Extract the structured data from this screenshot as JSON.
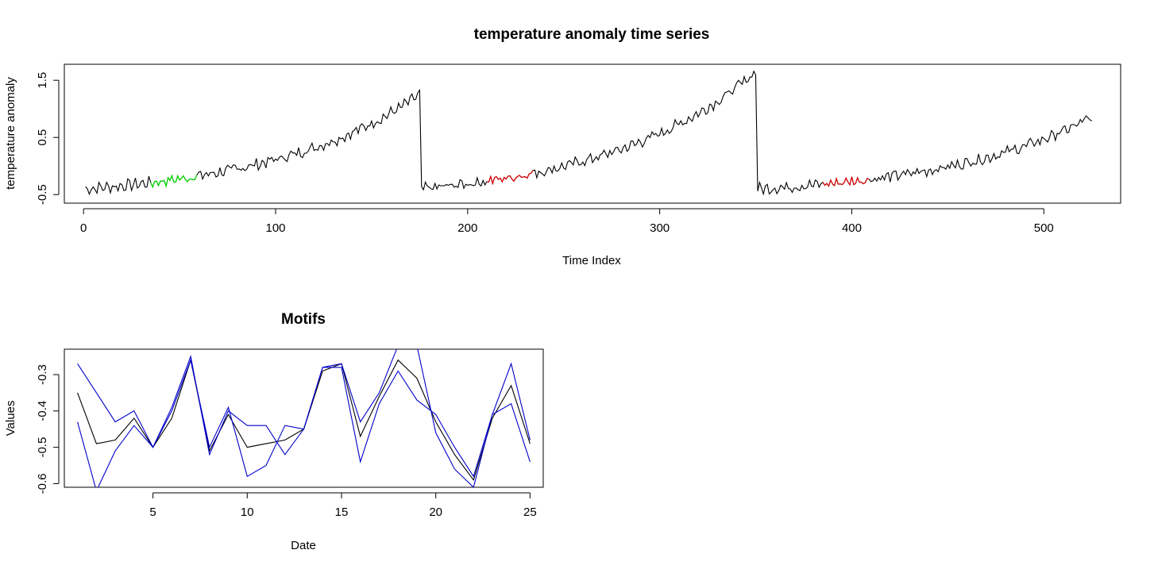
{
  "chart_data": [
    {
      "type": "line",
      "title": "temperature anomaly time series",
      "xlabel": "Time Index",
      "ylabel": "temperature anomaly",
      "xlim": [
        -10,
        540
      ],
      "ylim": [
        -0.65,
        1.78
      ],
      "xticks": [
        0,
        100,
        200,
        300,
        400,
        500
      ],
      "yticks": [
        -0.5,
        0.5,
        1.5
      ],
      "ytick_labels": [
        "-0.5",
        "0.5",
        "1.5"
      ],
      "grid": false,
      "series": [
        {
          "color": "#000000",
          "x_start": 1,
          "segments": [
            {
              "x_from": 1,
              "x_to": 175,
              "start": -0.4,
              "end": 1.25,
              "shape": "exponential"
            },
            {
              "x_from": 176,
              "x_to": 350,
              "start": -0.4,
              "end": 1.65,
              "shape": "exponential"
            },
            {
              "x_from": 351,
              "x_to": 525,
              "start": -0.4,
              "end": 0.85,
              "shape": "exponential"
            }
          ],
          "noise_amplitude": 0.08
        }
      ],
      "highlights": [
        {
          "color": "#00dd00",
          "x_from": 35,
          "x_to": 59
        },
        {
          "color": "#dd0000",
          "x_from": 210,
          "x_to": 234
        },
        {
          "color": "#dd0000",
          "x_from": 385,
          "x_to": 409
        }
      ]
    },
    {
      "type": "line",
      "title": "Motifs",
      "xlabel": "Date",
      "ylabel": "Values",
      "xlim": [
        0.3,
        25.7
      ],
      "ylim": [
        -0.61,
        -0.23
      ],
      "xticks": [
        5,
        10,
        15,
        20,
        25
      ],
      "yticks": [
        -0.6,
        -0.5,
        -0.4,
        -0.3
      ],
      "ytick_labels": [
        "-0.6",
        "-0.5",
        "-0.4",
        "-0.3"
      ],
      "grid": false,
      "x": [
        1,
        2,
        3,
        4,
        5,
        6,
        7,
        8,
        9,
        10,
        11,
        12,
        13,
        14,
        15,
        16,
        17,
        18,
        19,
        20,
        21,
        22,
        23,
        24,
        25
      ],
      "series": [
        {
          "color": "#000000",
          "values": [
            -0.35,
            -0.49,
            -0.48,
            -0.42,
            -0.5,
            -0.42,
            -0.26,
            -0.51,
            -0.41,
            -0.5,
            -0.49,
            -0.48,
            -0.45,
            -0.29,
            -0.27,
            -0.47,
            -0.36,
            -0.26,
            -0.31,
            -0.43,
            -0.52,
            -0.59,
            -0.42,
            -0.33,
            -0.49
          ]
        },
        {
          "color": "#0000cc",
          "values": [
            -0.27,
            -0.35,
            -0.43,
            -0.4,
            -0.5,
            -0.39,
            -0.25,
            -0.52,
            -0.4,
            -0.44,
            -0.44,
            -0.52,
            -0.45,
            -0.28,
            -0.27,
            -0.43,
            -0.35,
            -0.22,
            -0.22,
            -0.46,
            -0.56,
            -0.61,
            -0.41,
            -0.27,
            -0.48
          ]
        },
        {
          "color": "#0000cc",
          "values": [
            -0.43,
            -0.62,
            -0.51,
            -0.44,
            -0.5,
            -0.4,
            -0.26,
            -0.5,
            -0.39,
            -0.58,
            -0.55,
            -0.44,
            -0.45,
            -0.28,
            -0.28,
            -0.54,
            -0.38,
            -0.29,
            -0.37,
            -0.41,
            -0.5,
            -0.58,
            -0.41,
            -0.38,
            -0.54
          ]
        }
      ]
    }
  ]
}
